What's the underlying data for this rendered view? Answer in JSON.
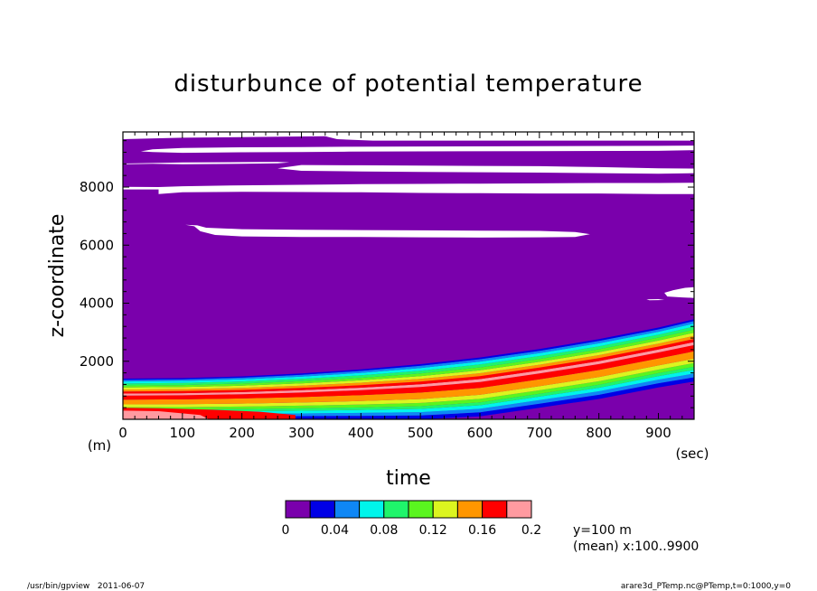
{
  "chart_data": {
    "type": "heatmap",
    "title": "disturbunce of potential temperature",
    "xlabel": "time",
    "ylabel": "z-coordinate",
    "x_unit": "(sec)",
    "y_unit": "(m)",
    "xlim": [
      0,
      960
    ],
    "ylim": [
      0,
      9900
    ],
    "x_ticks": [
      "0",
      "100",
      "200",
      "300",
      "400",
      "500",
      "600",
      "700",
      "800",
      "900"
    ],
    "x_tick_values": [
      0,
      100,
      200,
      300,
      400,
      500,
      600,
      700,
      800,
      900
    ],
    "y_ticks": [
      "2000",
      "4000",
      "6000",
      "8000"
    ],
    "y_tick_values": [
      2000,
      4000,
      6000,
      8000
    ],
    "grid": false,
    "colorbar": {
      "ticks": [
        "0",
        "0.04",
        "0.08",
        "0.12",
        "0.16",
        "0.2"
      ],
      "tick_values": [
        0,
        0.04,
        0.08,
        0.12,
        0.16,
        0.2
      ],
      "levels": [
        0,
        0.02,
        0.04,
        0.06,
        0.08,
        0.1,
        0.12,
        0.14,
        0.16,
        0.18,
        0.2
      ],
      "colors": [
        "#7a00ac",
        "#0000e6",
        "#0f87f5",
        "#00f5eb",
        "#1ff56b",
        "#5af51f",
        "#dcf51f",
        "#ff9600",
        "#ff0000",
        "#ff9aa0"
      ]
    },
    "lift_band": {
      "time": [
        0,
        100,
        200,
        300,
        400,
        500,
        600,
        700,
        800,
        900,
        960
      ],
      "top_height": [
        1400,
        1420,
        1480,
        1580,
        1720,
        1900,
        2130,
        2420,
        2760,
        3160,
        3450
      ],
      "bottom_height": [
        0,
        0,
        0,
        0,
        0,
        0,
        100,
        400,
        700,
        1100,
        1300
      ],
      "levels_bottom_to_top": [
        0.02,
        0.04,
        0.06,
        0.08,
        0.1,
        0.12,
        0.14,
        0.16,
        0.18,
        0.16,
        0.14,
        0.12,
        0.1,
        0.08,
        0.06,
        0.04,
        0.02
      ],
      "level_fractions": [
        0.07,
        0.06,
        0.06,
        0.05,
        0.06,
        0.07,
        0.12,
        0.1,
        0.05,
        0.05,
        0.05,
        0.05,
        0.05,
        0.05,
        0.05,
        0.04,
        0.03
      ]
    },
    "hot_core": [
      {
        "level": 0.16,
        "time": [
          0,
          60,
          150,
          230,
          290
        ],
        "height": [
          400,
          380,
          330,
          260,
          150
        ]
      },
      {
        "level": 0.18,
        "time": [
          0,
          60,
          130,
          145
        ],
        "height": [
          300,
          280,
          150,
          0
        ]
      }
    ],
    "below_zero_regions": [
      {
        "time": [
          0,
          100,
          200,
          340,
          360,
          420,
          960,
          960,
          0
        ],
        "height": [
          9650,
          9700,
          9720,
          9750,
          9650,
          9600,
          9600,
          9900,
          9900
        ]
      },
      {
        "time": [
          30,
          50,
          100,
          200,
          300,
          380,
          500,
          700,
          900,
          960,
          960,
          900,
          700,
          500,
          380,
          300,
          200,
          100,
          50
        ],
        "height": [
          9230,
          9300,
          9350,
          9370,
          9380,
          9390,
          9400,
          9410,
          9420,
          9430,
          9270,
          9250,
          9240,
          9230,
          9220,
          9210,
          9200,
          9180,
          9210
        ]
      },
      {
        "time": [
          0,
          50,
          100,
          200,
          260,
          280,
          260,
          200,
          100,
          50,
          0
        ],
        "height": [
          8810,
          8830,
          8850,
          8860,
          8870,
          8850,
          8820,
          8800,
          8790,
          8800,
          8790
        ]
      },
      {
        "time": [
          260,
          300,
          400,
          500,
          600,
          700,
          800,
          900,
          960,
          960,
          900,
          800,
          700,
          600,
          500,
          400,
          300
        ],
        "height": [
          8650,
          8760,
          8750,
          8740,
          8730,
          8720,
          8690,
          8650,
          8640,
          8480,
          8460,
          8480,
          8500,
          8510,
          8520,
          8540,
          8560
        ]
      },
      {
        "time": [
          0,
          60,
          80,
          60,
          0
        ],
        "height": [
          8010,
          8000,
          7960,
          7920,
          7920
        ]
      },
      {
        "time": [
          60,
          100,
          200,
          300,
          400,
          500,
          600,
          700,
          800,
          900,
          960,
          960,
          900,
          800,
          700,
          600,
          500,
          400,
          300,
          200,
          100,
          60
        ],
        "height": [
          8000,
          8030,
          8060,
          8080,
          8100,
          8110,
          8120,
          8130,
          8140,
          8140,
          8150,
          7760,
          7760,
          7780,
          7780,
          7790,
          7800,
          7820,
          7830,
          7840,
          7820,
          7760
        ]
      },
      {
        "time": [
          105,
          125,
          140,
          200,
          300,
          400,
          500,
          600,
          700,
          760,
          785,
          760,
          700,
          600,
          500,
          400,
          300,
          200,
          155,
          130,
          120
        ],
        "height": [
          6700,
          6680,
          6600,
          6550,
          6530,
          6520,
          6510,
          6500,
          6490,
          6450,
          6380,
          6280,
          6270,
          6260,
          6270,
          6280,
          6280,
          6300,
          6350,
          6480,
          6650
        ]
      },
      {
        "time": [
          910,
          925,
          945,
          960,
          960,
          940,
          915
        ],
        "height": [
          4360,
          4450,
          4530,
          4550,
          4180,
          4200,
          4230
        ]
      },
      {
        "time": [
          880,
          900,
          910,
          885
        ],
        "height": [
          4130,
          4140,
          4110,
          4100
        ]
      }
    ],
    "annotations": [
      "y=100 m",
      "(mean) x:100..9900"
    ]
  },
  "footer": {
    "left": "/usr/bin/gpview   2011-06-07",
    "right": "arare3d_PTemp.nc@PTemp,t=0:1000,y=0"
  }
}
